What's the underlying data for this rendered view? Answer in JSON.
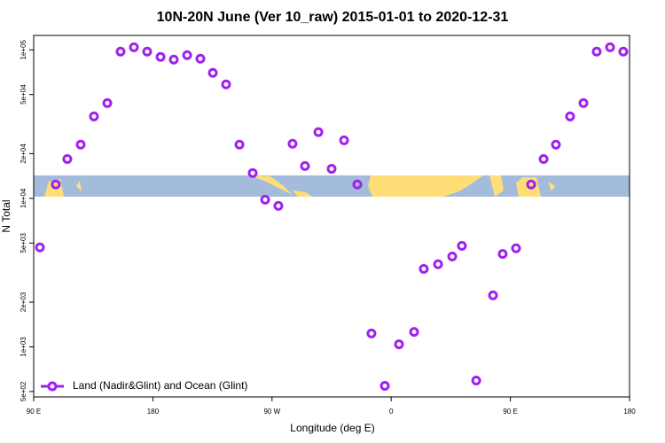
{
  "chart_data": {
    "type": "scatter",
    "title": "10N-20N June (Ver 10_raw)   2015-01-01 to 2020-12-31",
    "x_label": "Longitude (deg E)",
    "y_label": "N Total",
    "ylog": true,
    "legend_position": "bottom-left",
    "xlim": [
      90,
      540
    ],
    "xticks": [
      {
        "value": 90,
        "label": "90 E"
      },
      180,
      {
        "value": 270,
        "label": "90 W"
      },
      {
        "value": 360,
        "label": "0"
      },
      {
        "value": 450,
        "label": "90 E"
      },
      {
        "value": 540,
        "label": "180"
      }
    ],
    "ylim": [
      460,
      125000
    ],
    "yticks": [
      {
        "value": 500,
        "label": "5e+02"
      },
      {
        "value": 1000,
        "label": "1e+03"
      },
      {
        "value": 2000,
        "label": "2e+03"
      },
      {
        "value": 5000,
        "label": "5e+03"
      },
      {
        "value": 10000,
        "label": "1e+04"
      },
      {
        "value": 20000,
        "label": "2e+04"
      },
      {
        "value": 50000,
        "label": "5e+04"
      },
      {
        "value": 100000,
        "label": "1e+05"
      }
    ],
    "series": [
      {
        "name": "Land (Nadir&Glint) and Ocean (Glint)",
        "color": "#a020f0",
        "x": [
          94.7,
          106.7,
          115.4,
          125.5,
          135.5,
          145.6,
          155.6,
          165.7,
          175.7,
          185.8,
          195.8,
          205.9,
          215.9,
          225.3,
          235.3,
          245.4,
          255.4,
          264.8,
          274.8,
          285.5,
          294.9,
          305.0,
          315.0,
          324.4,
          334.4,
          345.1,
          355.2,
          365.9,
          377.3,
          384.6,
          395.4,
          406.1,
          413.4,
          424.2,
          436.9,
          444.2,
          454.3,
          465.7,
          475.1,
          484.4,
          495.1,
          505.2,
          515.2,
          525.3,
          535.3
        ],
        "values": [
          4670,
          12400,
          18400,
          23000,
          35600,
          43800,
          97300,
          104000,
          97300,
          89600,
          86000,
          92100,
          87100,
          70000,
          58500,
          23000,
          14800,
          9800,
          8900,
          23300,
          16500,
          27900,
          15800,
          24600,
          12400,
          1230,
          546,
          1040,
          1260,
          3350,
          3600,
          4060,
          4790,
          593,
          2220,
          4220,
          4610,
          12400,
          18400,
          23000,
          35600,
          43800,
          97300,
          104000,
          97300
        ]
      }
    ]
  }
}
